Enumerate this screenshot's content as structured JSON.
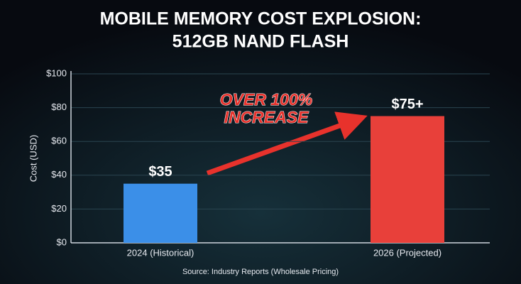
{
  "chart_data": {
    "type": "bar",
    "title": [
      "MOBILE MEMORY COST EXPLOSION:",
      "512GB NAND FLASH"
    ],
    "ylabel": "Cost (USD)",
    "categories": [
      "2024 (Historical)",
      "2026 (Projected)"
    ],
    "values": [
      35,
      75
    ],
    "value_labels": [
      "$35",
      "$75+"
    ],
    "colors": [
      "#3b8fe8",
      "#e8403a"
    ],
    "ylim": [
      0,
      100
    ],
    "yticks": [
      {
        "value": 0,
        "label": "$0"
      },
      {
        "value": 20,
        "label": "$20"
      },
      {
        "value": 40,
        "label": "$40"
      },
      {
        "value": 60,
        "label": "$60"
      },
      {
        "value": 80,
        "label": "$80"
      },
      {
        "value": 100,
        "label": "$100"
      }
    ],
    "grid": true,
    "annotation": [
      "OVER 100%",
      "INCREASE"
    ],
    "source": "Source: Industry Reports (Wholesale Pricing)"
  }
}
